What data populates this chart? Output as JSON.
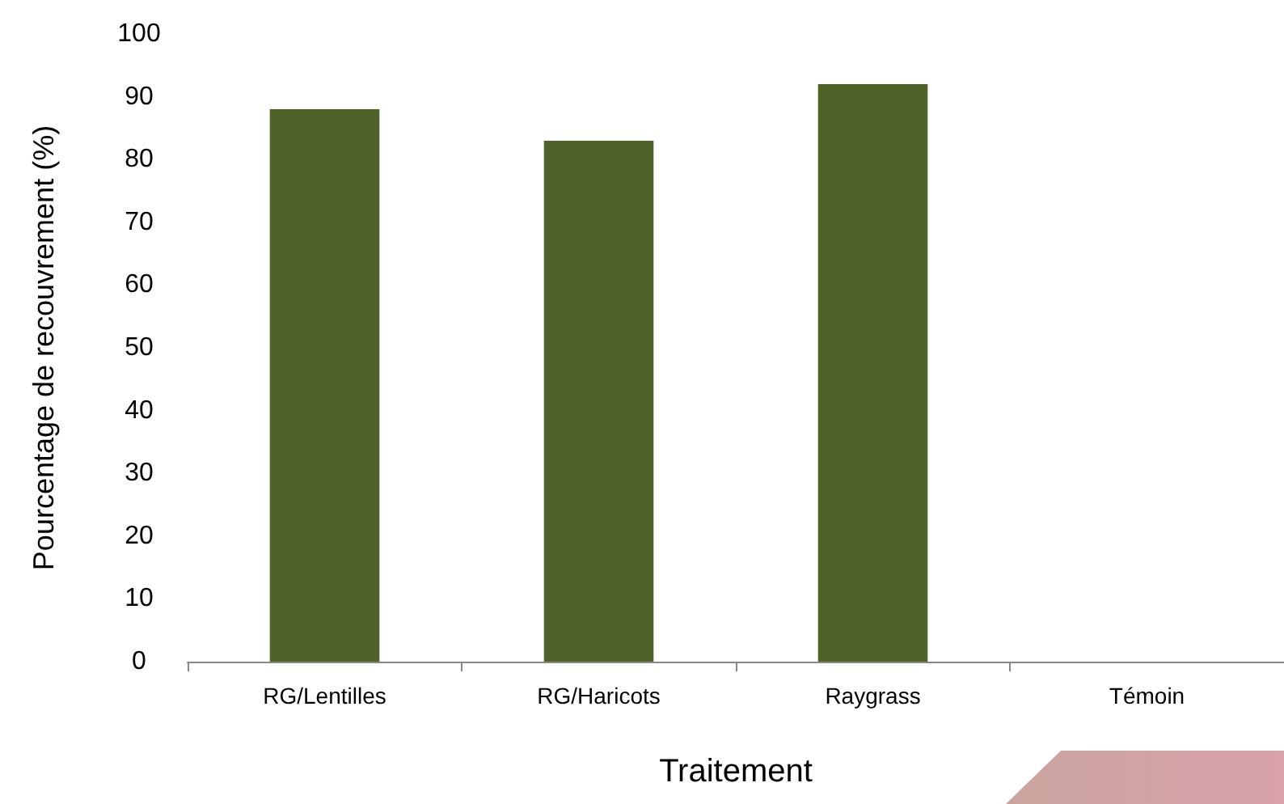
{
  "chart_data": {
    "type": "bar",
    "xlabel": "Traitement",
    "ylabel": "Pourcentage de recouvrement (%)",
    "categories": [
      "RG/Lentilles",
      "RG/Haricots",
      "Raygrass",
      "Témoin"
    ],
    "values": [
      88,
      83,
      92,
      0
    ],
    "color": "#506229",
    "ylim": [
      0,
      100
    ],
    "yticks": [
      0,
      10,
      20,
      30,
      40,
      50,
      60,
      70,
      80,
      90,
      100
    ],
    "grid": false
  }
}
